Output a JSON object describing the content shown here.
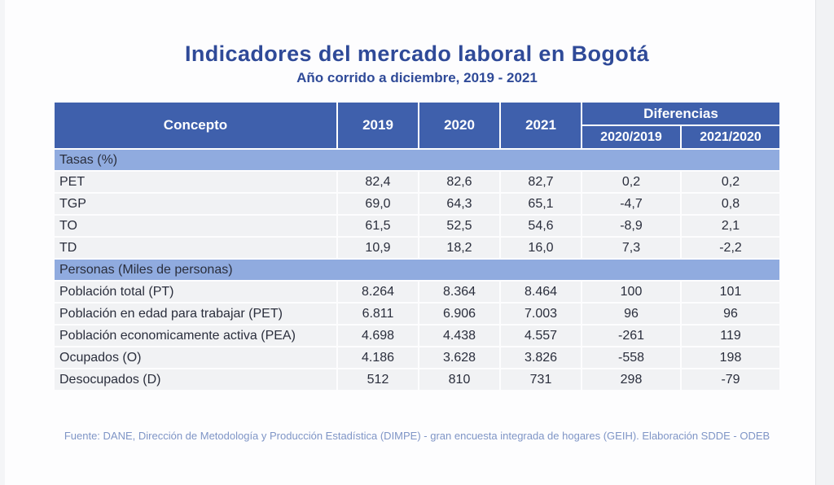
{
  "title": "Indicadores del mercado laboral en Bogotá",
  "subtitle": "Año corrido a diciembre, 2019 - 2021",
  "table": {
    "headers": {
      "concepto": "Concepto",
      "y2019": "2019",
      "y2020": "2020",
      "y2021": "2021",
      "diferencias": "Diferencias",
      "d1": "2020/2019",
      "d2": "2021/2020"
    },
    "sections": [
      {
        "label": "Tasas (%)",
        "rows": [
          {
            "concept": "PET",
            "y2019": "82,4",
            "y2020": "82,6",
            "y2021": "82,7",
            "d1": "0,2",
            "d2": "0,2"
          },
          {
            "concept": "TGP",
            "y2019": "69,0",
            "y2020": "64,3",
            "y2021": "65,1",
            "d1": "-4,7",
            "d2": "0,8"
          },
          {
            "concept": "TO",
            "y2019": "61,5",
            "y2020": "52,5",
            "y2021": "54,6",
            "d1": "-8,9",
            "d2": "2,1"
          },
          {
            "concept": "TD",
            "y2019": "10,9",
            "y2020": "18,2",
            "y2021": "16,0",
            "d1": "7,3",
            "d2": "-2,2"
          }
        ]
      },
      {
        "label": "Personas (Miles de personas)",
        "rows": [
          {
            "concept": "Población total (PT)",
            "y2019": "8.264",
            "y2020": "8.364",
            "y2021": "8.464",
            "d1": "100",
            "d2": "101"
          },
          {
            "concept": "Población en edad para trabajar (PET)",
            "y2019": "6.811",
            "y2020": "6.906",
            "y2021": "7.003",
            "d1": "96",
            "d2": "96"
          },
          {
            "concept": "Población economicamente activa (PEA)",
            "y2019": "4.698",
            "y2020": "4.438",
            "y2021": "4.557",
            "d1": "-261",
            "d2": "119"
          },
          {
            "concept": "Ocupados (O)",
            "y2019": "4.186",
            "y2020": "3.628",
            "y2021": "3.826",
            "d1": "-558",
            "d2": "198"
          },
          {
            "concept": "Desocupados (D)",
            "y2019": "512",
            "y2020": "810",
            "y2021": "731",
            "d1": "298",
            "d2": "-79"
          }
        ]
      }
    ]
  },
  "source": "Fuente: DANE, Dirección de Metodología y Producción Estadística (DIMPE) - gran encuesta integrada de hogares (GEIH). Elaboración SDDE - ODEB",
  "colors": {
    "title": "#2f4a98",
    "header_bg": "#3f60ac",
    "section_bg": "#90abdf",
    "row_bg": "#f1f2f4",
    "source": "#7f95c6"
  }
}
